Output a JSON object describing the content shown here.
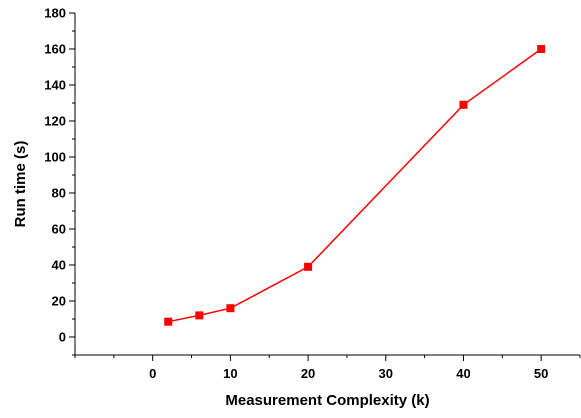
{
  "chart_data": {
    "type": "line",
    "title": "",
    "xlabel": "Measurement Complexity (k)",
    "ylabel": "Run time (s)",
    "x": [
      2,
      6,
      10,
      20,
      40,
      50
    ],
    "series": [
      {
        "values": [
          8.5,
          12,
          16,
          39,
          129,
          160
        ],
        "color": "#ff0000",
        "marker": "square"
      }
    ],
    "xlim": [
      -10,
      55
    ],
    "ylim": [
      -10,
      180
    ],
    "xticks": [
      0,
      10,
      20,
      30,
      40,
      50
    ],
    "yticks": [
      0,
      20,
      40,
      60,
      80,
      100,
      120,
      140,
      160,
      180
    ],
    "xtick_labels": [
      "0",
      "10",
      "20",
      "30",
      "40",
      "50"
    ],
    "ytick_labels": [
      "0",
      "20",
      "40",
      "60",
      "80",
      "100",
      "120",
      "140",
      "160",
      "180"
    ],
    "grid": false,
    "legend": "none"
  }
}
